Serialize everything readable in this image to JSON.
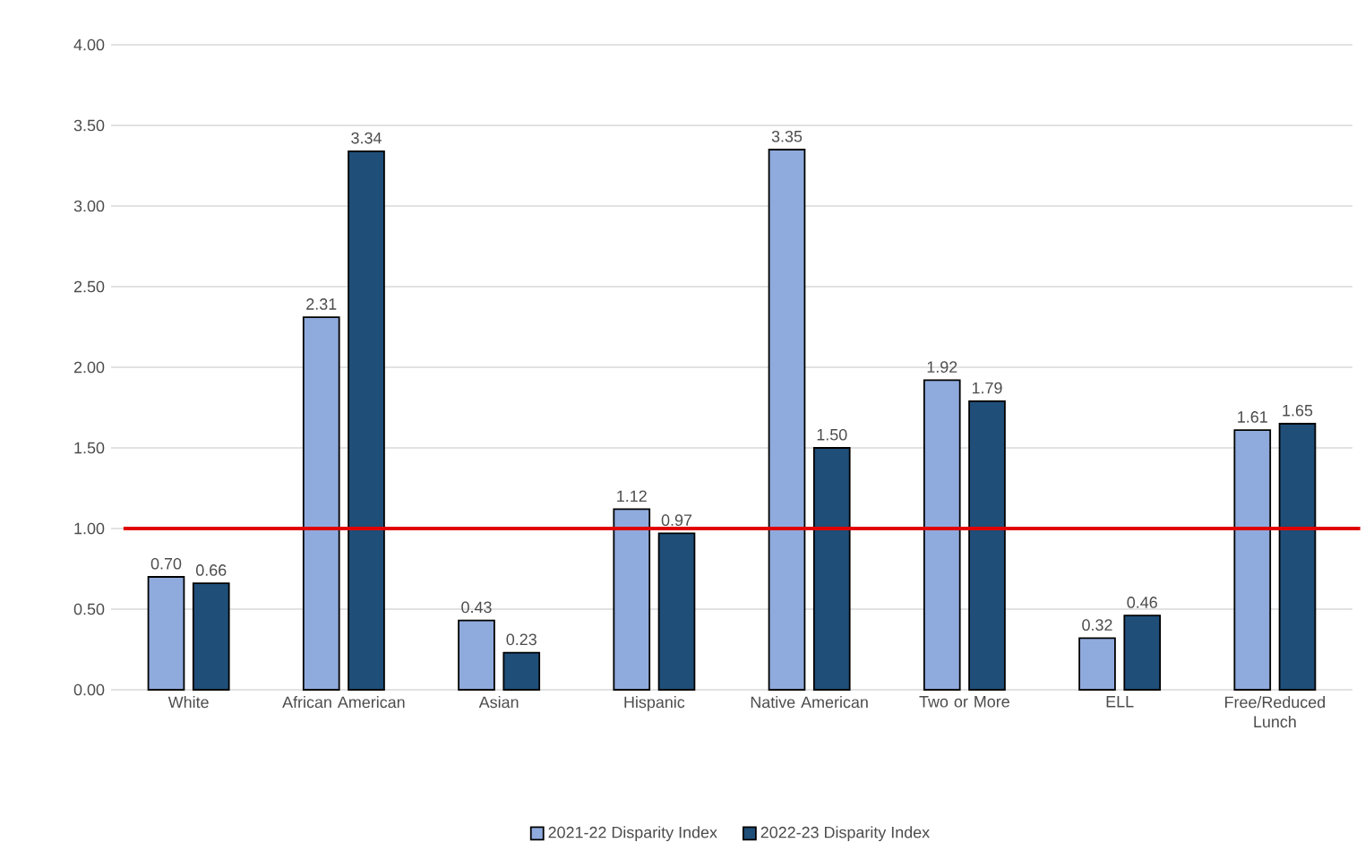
{
  "chart_data": {
    "type": "bar",
    "categories": [
      "White",
      "African American",
      "Asian",
      "Hispanic",
      "Native American",
      "Two or More",
      "ELL",
      "Free/Reduced Lunch"
    ],
    "series": [
      {
        "name": "2021-22 Disparity Index",
        "color": "#8faadc",
        "values": [
          0.7,
          2.31,
          0.43,
          1.12,
          3.35,
          1.92,
          0.32,
          1.61
        ],
        "value_labels": [
          "0.70",
          "2.31",
          "0.43",
          "1.12",
          "3.35",
          "1.92",
          "0.32",
          "1.61"
        ]
      },
      {
        "name": "2022-23 Disparity Index",
        "color": "#1f4e79",
        "values": [
          0.66,
          3.34,
          0.23,
          0.97,
          1.5,
          1.79,
          0.46,
          1.65
        ],
        "value_labels": [
          "0.66",
          "3.34",
          "0.23",
          "0.97",
          "1.50",
          "1.79",
          "0.46",
          "1.65"
        ]
      }
    ],
    "ylim": [
      0,
      4
    ],
    "yticks": [
      {
        "value": 0,
        "label": "0.00"
      },
      {
        "value": 0.5,
        "label": "0.50"
      },
      {
        "value": 1,
        "label": "1.00"
      },
      {
        "value": 1.5,
        "label": "1.50"
      },
      {
        "value": 2,
        "label": "2.00"
      },
      {
        "value": 2.5,
        "label": "2.50"
      },
      {
        "value": 3,
        "label": "3.00"
      },
      {
        "value": 3.5,
        "label": "3.50"
      },
      {
        "value": 4,
        "label": "4.00"
      }
    ],
    "ref_lines": [
      {
        "axis": "y",
        "value": 1,
        "color": "#e00000"
      }
    ],
    "grid": "y",
    "legend": "bottom"
  }
}
